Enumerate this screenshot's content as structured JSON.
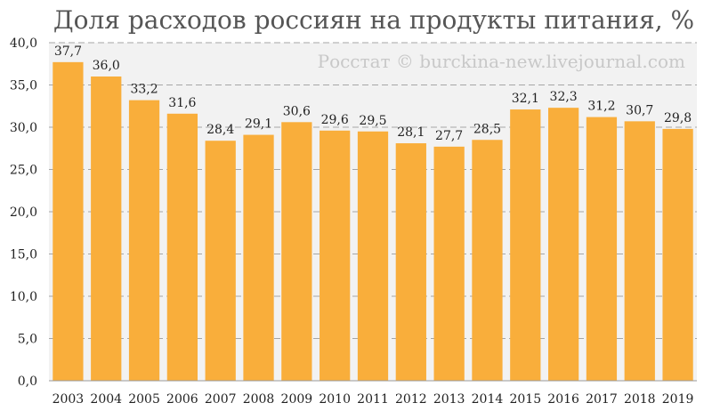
{
  "chart_data": {
    "type": "bar",
    "title": "Доля расходов россиян на продукты питания, %",
    "watermark": "Росстат © burckina-new.livejournal.com",
    "categories": [
      "2003",
      "2004",
      "2005",
      "2006",
      "2007",
      "2008",
      "2009",
      "2010",
      "2011",
      "2012",
      "2013",
      "2014",
      "2015",
      "2016",
      "2017",
      "2018",
      "2019"
    ],
    "values": [
      37.7,
      36.0,
      33.2,
      31.6,
      28.4,
      29.1,
      30.6,
      29.6,
      29.5,
      28.1,
      27.7,
      28.5,
      32.1,
      32.3,
      31.2,
      30.7,
      29.8
    ],
    "value_labels": [
      "37,7",
      "36,0",
      "33,2",
      "31,6",
      "28,4",
      "29,1",
      "30,6",
      "29,6",
      "29,5",
      "28,1",
      "27,7",
      "28,5",
      "32,1",
      "32,3",
      "31,2",
      "30,7",
      "29,8"
    ],
    "ylim": [
      0,
      40
    ],
    "y_ticks": [
      0,
      5,
      10,
      15,
      20,
      25,
      30,
      35,
      40
    ],
    "y_tick_labels": [
      "0,0",
      "5,0",
      "10,0",
      "15,0",
      "20,0",
      "25,0",
      "30,0",
      "35,0",
      "40,0"
    ],
    "grid": true,
    "bar_color": "#f9ae3b",
    "plot_background": "#f2f2f2",
    "xlabel": "",
    "ylabel": ""
  }
}
